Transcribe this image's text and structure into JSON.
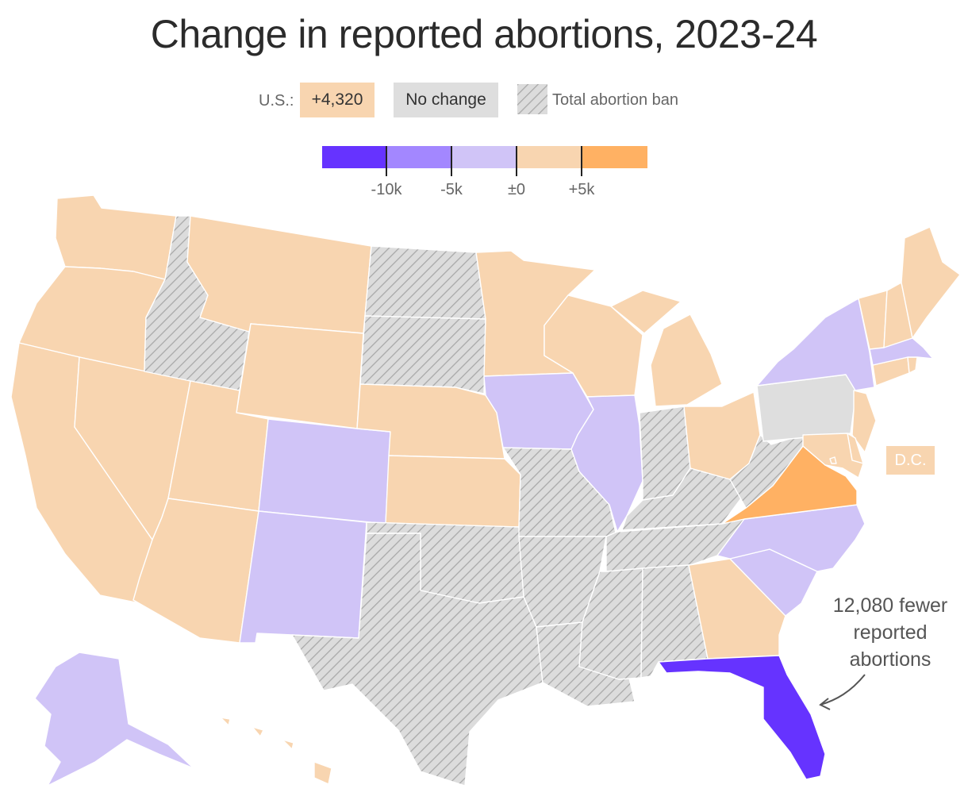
{
  "title": "Change in reported abortions, 2023‑24",
  "legend": {
    "us_label": "U.S.:",
    "us_value": "+4,320",
    "no_change": "No change",
    "ban": "Total abortion ban"
  },
  "scale": {
    "bins": [
      {
        "color": "#6633ff",
        "range": "below -10k"
      },
      {
        "color": "#a387ff",
        "range": "-10k to -5k"
      },
      {
        "color": "#d0c4f7",
        "range": "-5k to 0"
      },
      {
        "color": "#f8d5b0",
        "range": "0 to +5k"
      },
      {
        "color": "#ffb163",
        "range": "above +5k"
      }
    ],
    "ticks": [
      "-10k",
      "-5k",
      "±0",
      "+5k"
    ]
  },
  "colors": {
    "ban_fill": "#dcdcdc",
    "ban_hatch": "#a9a9a9",
    "no_change": "#dedede",
    "border": "#ffffff"
  },
  "dc_label": "D.C.",
  "annotation": {
    "lines": [
      "12,080 fewer",
      "reported",
      "abortions"
    ]
  },
  "states": [
    {
      "name": "Washington",
      "category": "increase-small"
    },
    {
      "name": "Oregon",
      "category": "increase-small"
    },
    {
      "name": "California",
      "category": "increase-small"
    },
    {
      "name": "Nevada",
      "category": "increase-small"
    },
    {
      "name": "Idaho",
      "category": "ban"
    },
    {
      "name": "Montana",
      "category": "increase-small"
    },
    {
      "name": "Wyoming",
      "category": "increase-small"
    },
    {
      "name": "Utah",
      "category": "increase-small"
    },
    {
      "name": "Arizona",
      "category": "increase-small"
    },
    {
      "name": "Colorado",
      "category": "decrease-small"
    },
    {
      "name": "New Mexico",
      "category": "decrease-small"
    },
    {
      "name": "North Dakota",
      "category": "ban"
    },
    {
      "name": "South Dakota",
      "category": "ban"
    },
    {
      "name": "Nebraska",
      "category": "increase-small"
    },
    {
      "name": "Kansas",
      "category": "increase-small"
    },
    {
      "name": "Oklahoma",
      "category": "ban"
    },
    {
      "name": "Texas",
      "category": "ban"
    },
    {
      "name": "Minnesota",
      "category": "increase-small"
    },
    {
      "name": "Iowa",
      "category": "decrease-small"
    },
    {
      "name": "Missouri",
      "category": "ban"
    },
    {
      "name": "Arkansas",
      "category": "ban"
    },
    {
      "name": "Louisiana",
      "category": "ban"
    },
    {
      "name": "Wisconsin",
      "category": "increase-small"
    },
    {
      "name": "Illinois",
      "category": "decrease-small"
    },
    {
      "name": "Michigan",
      "category": "increase-small"
    },
    {
      "name": "Indiana",
      "category": "ban"
    },
    {
      "name": "Ohio",
      "category": "increase-small"
    },
    {
      "name": "Kentucky",
      "category": "ban"
    },
    {
      "name": "Tennessee",
      "category": "ban"
    },
    {
      "name": "Mississippi",
      "category": "ban"
    },
    {
      "name": "Alabama",
      "category": "ban"
    },
    {
      "name": "Georgia",
      "category": "increase-small"
    },
    {
      "name": "Florida",
      "category": "decrease-large"
    },
    {
      "name": "South Carolina",
      "category": "decrease-small"
    },
    {
      "name": "North Carolina",
      "category": "decrease-small"
    },
    {
      "name": "Virginia",
      "category": "increase-large"
    },
    {
      "name": "West Virginia",
      "category": "ban"
    },
    {
      "name": "Pennsylvania",
      "category": "no-change"
    },
    {
      "name": "New York",
      "category": "decrease-small"
    },
    {
      "name": "New Jersey",
      "category": "increase-small"
    },
    {
      "name": "Delaware",
      "category": "increase-small"
    },
    {
      "name": "Maryland",
      "category": "increase-small"
    },
    {
      "name": "Connecticut",
      "category": "increase-small"
    },
    {
      "name": "Rhode Island",
      "category": "increase-small"
    },
    {
      "name": "Massachusetts",
      "category": "decrease-small"
    },
    {
      "name": "Vermont",
      "category": "increase-small"
    },
    {
      "name": "New Hampshire",
      "category": "increase-small"
    },
    {
      "name": "Maine",
      "category": "increase-small"
    },
    {
      "name": "Alaska",
      "category": "decrease-small"
    },
    {
      "name": "Hawaii",
      "category": "increase-small"
    },
    {
      "name": "District of Columbia",
      "category": "increase-small"
    }
  ]
}
